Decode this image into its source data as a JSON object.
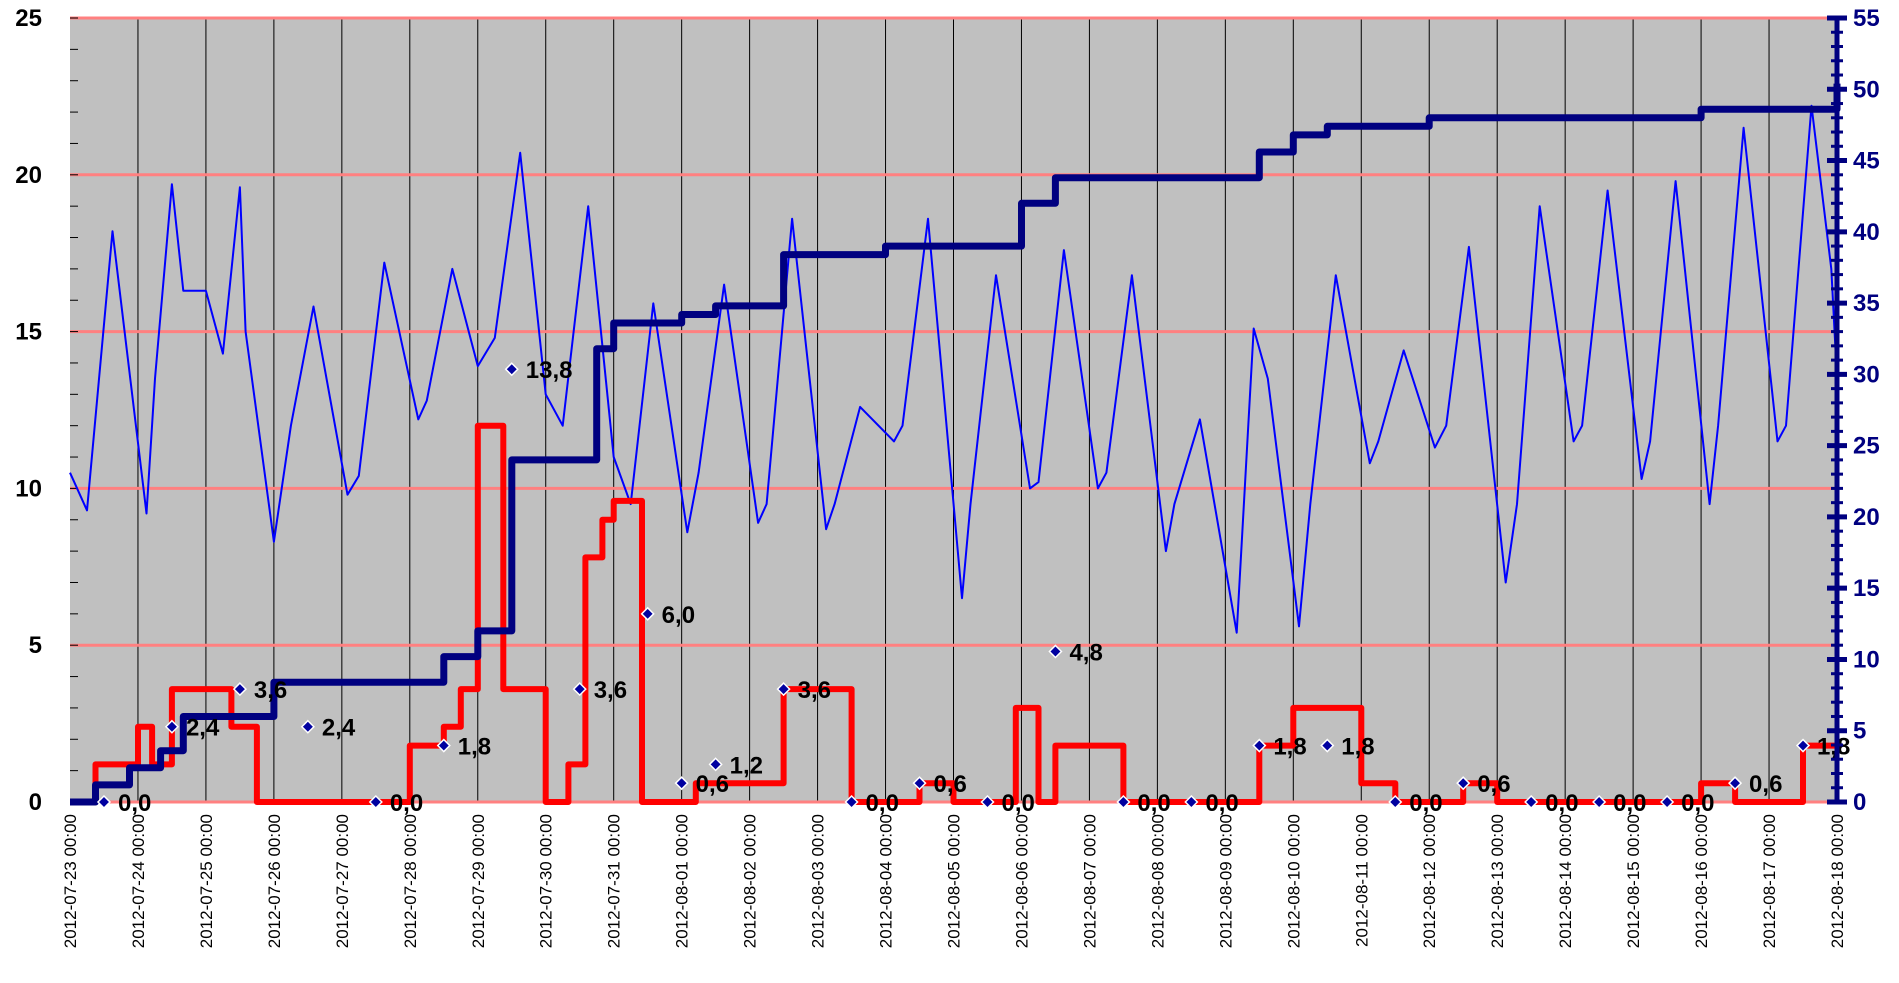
{
  "chart_data": {
    "type": "line",
    "title": "",
    "xlabel": "",
    "ylabel": "",
    "y2label": "",
    "legend": "none",
    "grid": true,
    "colors": {
      "plot_bg": "#c0c0c0",
      "h_grid": "#ff8080",
      "v_grid": "#000000",
      "temperature": "#0000ff",
      "daily_precip": "#ff0000",
      "cumulative": "#000080",
      "daily_marker": "#0000a0",
      "right_axis": "#000080"
    },
    "x_range": [
      "2012-07-23 00:00",
      "2012-08-18 00:00"
    ],
    "x_ticks": [
      "2012-07-23 00:00",
      "2012-07-24 00:00",
      "2012-07-25 00:00",
      "2012-07-26 00:00",
      "2012-07-27 00:00",
      "2012-07-28 00:00",
      "2012-07-29 00:00",
      "2012-07-30 00:00",
      "2012-07-31 00:00",
      "2012-08-01 00:00",
      "2012-08-02 00:00",
      "2012-08-03 00:00",
      "2012-08-04 00:00",
      "2012-08-05 00:00",
      "2012-08-06 00:00",
      "2012-08-07 00:00",
      "2012-08-08 00:00",
      "2012-08-09 00:00",
      "2012-08-10 00:00",
      "2012-08-11 00:00",
      "2012-08-12 00:00",
      "2012-08-13 00:00",
      "2012-08-14 00:00",
      "2012-08-15 00:00",
      "2012-08-16 00:00",
      "2012-08-17 00:00",
      "2012-08-18 00:00"
    ],
    "y_left": {
      "min": 0,
      "max": 25,
      "ticks": [
        "0",
        "5",
        "10",
        "15",
        "20",
        "25"
      ]
    },
    "y_right": {
      "min": 0,
      "max": 55,
      "ticks": [
        "0",
        "5",
        "10",
        "15",
        "20",
        "25",
        "30",
        "35",
        "40",
        "45",
        "50",
        "55"
      ]
    },
    "series": [
      {
        "key": "temperature",
        "axis": "left",
        "x": [
          "2012-07-23 00:00",
          "2012-07-23 06:00",
          "2012-07-23 15:00",
          "2012-07-24 03:00",
          "2012-07-24 06:00",
          "2012-07-24 12:00",
          "2012-07-24 16:00",
          "2012-07-25 00:00",
          "2012-07-25 06:00",
          "2012-07-25 12:00",
          "2012-07-25 14:00",
          "2012-07-26 00:00",
          "2012-07-26 06:00",
          "2012-07-26 14:00",
          "2012-07-27 02:00",
          "2012-07-27 06:00",
          "2012-07-27 15:00",
          "2012-07-28 03:00",
          "2012-07-28 06:00",
          "2012-07-28 15:00",
          "2012-07-29 00:00",
          "2012-07-29 06:00",
          "2012-07-29 15:00",
          "2012-07-30 00:00",
          "2012-07-30 06:00",
          "2012-07-30 15:00",
          "2012-07-31 00:00",
          "2012-07-31 06:00",
          "2012-07-31 14:00",
          "2012-08-01 02:00",
          "2012-08-01 06:00",
          "2012-08-01 15:00",
          "2012-08-02 03:00",
          "2012-08-02 06:00",
          "2012-08-02 15:00",
          "2012-08-03 03:00",
          "2012-08-03 06:00",
          "2012-08-03 15:00",
          "2012-08-04 03:00",
          "2012-08-04 06:00",
          "2012-08-04 15:00",
          "2012-08-05 03:00",
          "2012-08-05 06:00",
          "2012-08-05 15:00",
          "2012-08-06 03:00",
          "2012-08-06 06:00",
          "2012-08-06 15:00",
          "2012-08-07 03:00",
          "2012-08-07 06:00",
          "2012-08-07 15:00",
          "2012-08-08 03:00",
          "2012-08-08 06:00",
          "2012-08-08 15:00",
          "2012-08-09 04:00",
          "2012-08-09 10:00",
          "2012-08-09 15:00",
          "2012-08-10 02:00",
          "2012-08-10 06:00",
          "2012-08-10 15:00",
          "2012-08-11 03:00",
          "2012-08-11 06:00",
          "2012-08-11 15:00",
          "2012-08-12 02:00",
          "2012-08-12 06:00",
          "2012-08-12 14:00",
          "2012-08-13 03:00",
          "2012-08-13 07:00",
          "2012-08-13 15:00",
          "2012-08-14 03:00",
          "2012-08-14 06:00",
          "2012-08-14 15:00",
          "2012-08-15 03:00",
          "2012-08-15 06:00",
          "2012-08-15 15:00",
          "2012-08-16 03:00",
          "2012-08-16 06:00",
          "2012-08-16 15:00",
          "2012-08-17 03:00",
          "2012-08-17 06:00",
          "2012-08-17 15:00",
          "2012-08-17 22:00",
          "2012-08-18 00:00"
        ],
        "y": [
          10.5,
          9.3,
          18.2,
          9.2,
          13.5,
          19.7,
          16.3,
          16.3,
          14.3,
          19.6,
          15.0,
          8.3,
          12.0,
          15.8,
          9.8,
          10.4,
          17.2,
          12.2,
          12.8,
          17.0,
          13.9,
          14.8,
          20.7,
          13.0,
          12.0,
          19.0,
          11.0,
          9.5,
          15.9,
          8.6,
          10.5,
          16.5,
          8.9,
          9.5,
          18.6,
          8.7,
          9.5,
          12.6,
          11.5,
          12.0,
          18.6,
          6.5,
          9.5,
          16.8,
          10.0,
          10.2,
          17.6,
          10.0,
          10.5,
          16.8,
          8.0,
          9.5,
          12.2,
          5.4,
          15.1,
          13.5,
          5.6,
          9.5,
          16.8,
          10.8,
          11.5,
          14.4,
          11.3,
          12.0,
          17.7,
          7.0,
          9.5,
          19.0,
          11.5,
          12.0,
          19.5,
          10.3,
          11.5,
          19.8,
          9.5,
          12.0,
          21.5,
          11.5,
          12.0,
          22.2,
          17.0,
          13.5
        ]
      },
      {
        "key": "daily_precip",
        "axis": "left",
        "x": [
          "2012-07-23 00:00",
          "2012-07-23 09:00",
          "2012-07-24 00:00",
          "2012-07-24 05:00",
          "2012-07-24 12:00",
          "2012-07-25 00:00",
          "2012-07-25 09:00",
          "2012-07-25 18:00",
          "2012-07-26 00:00",
          "2012-07-26 09:00",
          "2012-07-27 00:00",
          "2012-07-27 12:00",
          "2012-07-28 00:00",
          "2012-07-28 12:00",
          "2012-07-28 18:00",
          "2012-07-29 00:00",
          "2012-07-29 09:00",
          "2012-07-29 12:00",
          "2012-07-30 00:00",
          "2012-07-30 08:00",
          "2012-07-30 14:00",
          "2012-07-30 20:00",
          "2012-07-31 00:00",
          "2012-07-31 10:00",
          "2012-08-01 00:00",
          "2012-08-01 05:00",
          "2012-08-01 12:00",
          "2012-08-02 00:00",
          "2012-08-02 12:00",
          "2012-08-03 00:00",
          "2012-08-03 12:00",
          "2012-08-04 00:00",
          "2012-08-04 12:00",
          "2012-08-05 00:00",
          "2012-08-05 12:00",
          "2012-08-05 22:00",
          "2012-08-06 06:00",
          "2012-08-06 12:00",
          "2012-08-07 00:00",
          "2012-08-07 12:00",
          "2012-08-08 00:00",
          "2012-08-08 12:00",
          "2012-08-09 00:00",
          "2012-08-09 12:00",
          "2012-08-10 00:00",
          "2012-08-10 12:00",
          "2012-08-11 00:00",
          "2012-08-11 12:00",
          "2012-08-12 00:00",
          "2012-08-12 12:00",
          "2012-08-13 00:00",
          "2012-08-13 12:00",
          "2012-08-14 00:00",
          "2012-08-14 12:00",
          "2012-08-15 00:00",
          "2012-08-15 12:00",
          "2012-08-16 00:00",
          "2012-08-16 12:00",
          "2012-08-17 00:00",
          "2012-08-17 12:00",
          "2012-08-18 00:00"
        ],
        "y": [
          0.0,
          1.2,
          2.4,
          1.2,
          3.6,
          3.6,
          2.4,
          0.0,
          0.0,
          0.0,
          0.0,
          0.0,
          1.8,
          2.4,
          3.6,
          12.0,
          3.6,
          3.6,
          0.0,
          1.2,
          7.8,
          9.0,
          9.6,
          0.0,
          0.0,
          0.6,
          0.6,
          0.6,
          3.6,
          3.6,
          0.0,
          0.0,
          0.6,
          0.0,
          0.0,
          3.0,
          0.0,
          1.8,
          1.8,
          0.0,
          0.0,
          0.0,
          0.0,
          1.8,
          3.0,
          3.0,
          0.6,
          0.0,
          0.0,
          0.6,
          0.0,
          0.0,
          0.0,
          0.0,
          0.0,
          0.0,
          0.6,
          0.0,
          0.0,
          1.8,
          1.8
        ]
      },
      {
        "key": "cumulative",
        "axis": "right",
        "x": [
          "2012-07-23 00:00",
          "2012-07-23 09:00",
          "2012-07-23 21:00",
          "2012-07-24 08:00",
          "2012-07-24 16:00",
          "2012-07-25 12:00",
          "2012-07-26 00:00",
          "2012-07-27 00:00",
          "2012-07-28 00:00",
          "2012-07-28 12:00",
          "2012-07-29 00:00",
          "2012-07-29 12:00",
          "2012-07-30 00:00",
          "2012-07-30 12:00",
          "2012-07-30 18:00",
          "2012-07-31 00:00",
          "2012-07-31 12:00",
          "2012-08-01 00:00",
          "2012-08-01 12:00",
          "2012-08-02 00:00",
          "2012-08-02 12:00",
          "2012-08-03 00:00",
          "2012-08-03 12:00",
          "2012-08-04 00:00",
          "2012-08-04 12:00",
          "2012-08-05 00:00",
          "2012-08-05 12:00",
          "2012-08-06 00:00",
          "2012-08-06 12:00",
          "2012-08-07 00:00",
          "2012-08-07 12:00",
          "2012-08-08 00:00",
          "2012-08-08 12:00",
          "2012-08-09 00:00",
          "2012-08-09 12:00",
          "2012-08-10 00:00",
          "2012-08-10 12:00",
          "2012-08-11 00:00",
          "2012-08-11 12:00",
          "2012-08-12 00:00",
          "2012-08-12 12:00",
          "2012-08-13 00:00",
          "2012-08-13 12:00",
          "2012-08-14 00:00",
          "2012-08-14 12:00",
          "2012-08-15 00:00",
          "2012-08-15 12:00",
          "2012-08-16 00:00",
          "2012-08-16 12:00",
          "2012-08-17 00:00",
          "2012-08-17 12:00",
          "2012-08-18 00:00"
        ],
        "y": [
          0.0,
          1.2,
          2.4,
          3.6,
          6.0,
          6.0,
          8.4,
          8.4,
          8.4,
          10.2,
          12.0,
          24.0,
          24.0,
          24.0,
          31.8,
          33.6,
          33.6,
          34.2,
          34.8,
          34.8,
          38.4,
          38.4,
          38.4,
          39.0,
          39.0,
          39.0,
          39.0,
          42.0,
          43.8,
          43.8,
          43.8,
          43.8,
          43.8,
          43.8,
          45.6,
          46.8,
          47.4,
          47.4,
          47.4,
          48.0,
          48.0,
          48.0,
          48.0,
          48.0,
          48.0,
          48.0,
          48.0,
          48.6,
          48.6,
          48.6,
          48.6,
          50.4
        ]
      },
      {
        "key": "daily_totals",
        "axis": "left",
        "x": [
          "2012-07-23 12:00",
          "2012-07-24 12:00",
          "2012-07-25 12:00",
          "2012-07-26 12:00",
          "2012-07-27 12:00",
          "2012-07-28 12:00",
          "2012-07-29 12:00",
          "2012-07-30 12:00",
          "2012-07-31 12:00",
          "2012-08-01 00:00",
          "2012-08-01 12:00",
          "2012-08-02 12:00",
          "2012-08-03 12:00",
          "2012-08-04 12:00",
          "2012-08-05 12:00",
          "2012-08-06 12:00",
          "2012-08-07 12:00",
          "2012-08-08 12:00",
          "2012-08-09 12:00",
          "2012-08-10 12:00",
          "2012-08-11 12:00",
          "2012-08-12 12:00",
          "2012-08-13 12:00",
          "2012-08-14 12:00",
          "2012-08-15 12:00",
          "2012-08-16 12:00",
          "2012-08-17 12:00"
        ],
        "y": [
          0.0,
          2.4,
          3.6,
          2.4,
          0.0,
          1.8,
          13.8,
          3.6,
          6.0,
          0.6,
          1.2,
          3.6,
          0.0,
          0.6,
          0.0,
          4.8,
          0.0,
          0.0,
          1.8,
          1.8,
          0.0,
          0.6,
          0.0,
          0.0,
          0.0,
          0.6,
          1.8
        ]
      }
    ],
    "data_labels": [
      "0,0",
      "2,4",
      "3,6",
      "2,4",
      "0,0",
      "1,8",
      "13,8",
      "3,6",
      "6,0",
      "0,6",
      "1,2",
      "3,6",
      "0,0",
      "0,6",
      "0,0",
      "4,8",
      "0,0",
      "0,0",
      "1,8",
      "1,8",
      "0,0",
      "0,6",
      "0,0",
      "0,0",
      "0,0",
      "0,6",
      "1,8"
    ]
  }
}
